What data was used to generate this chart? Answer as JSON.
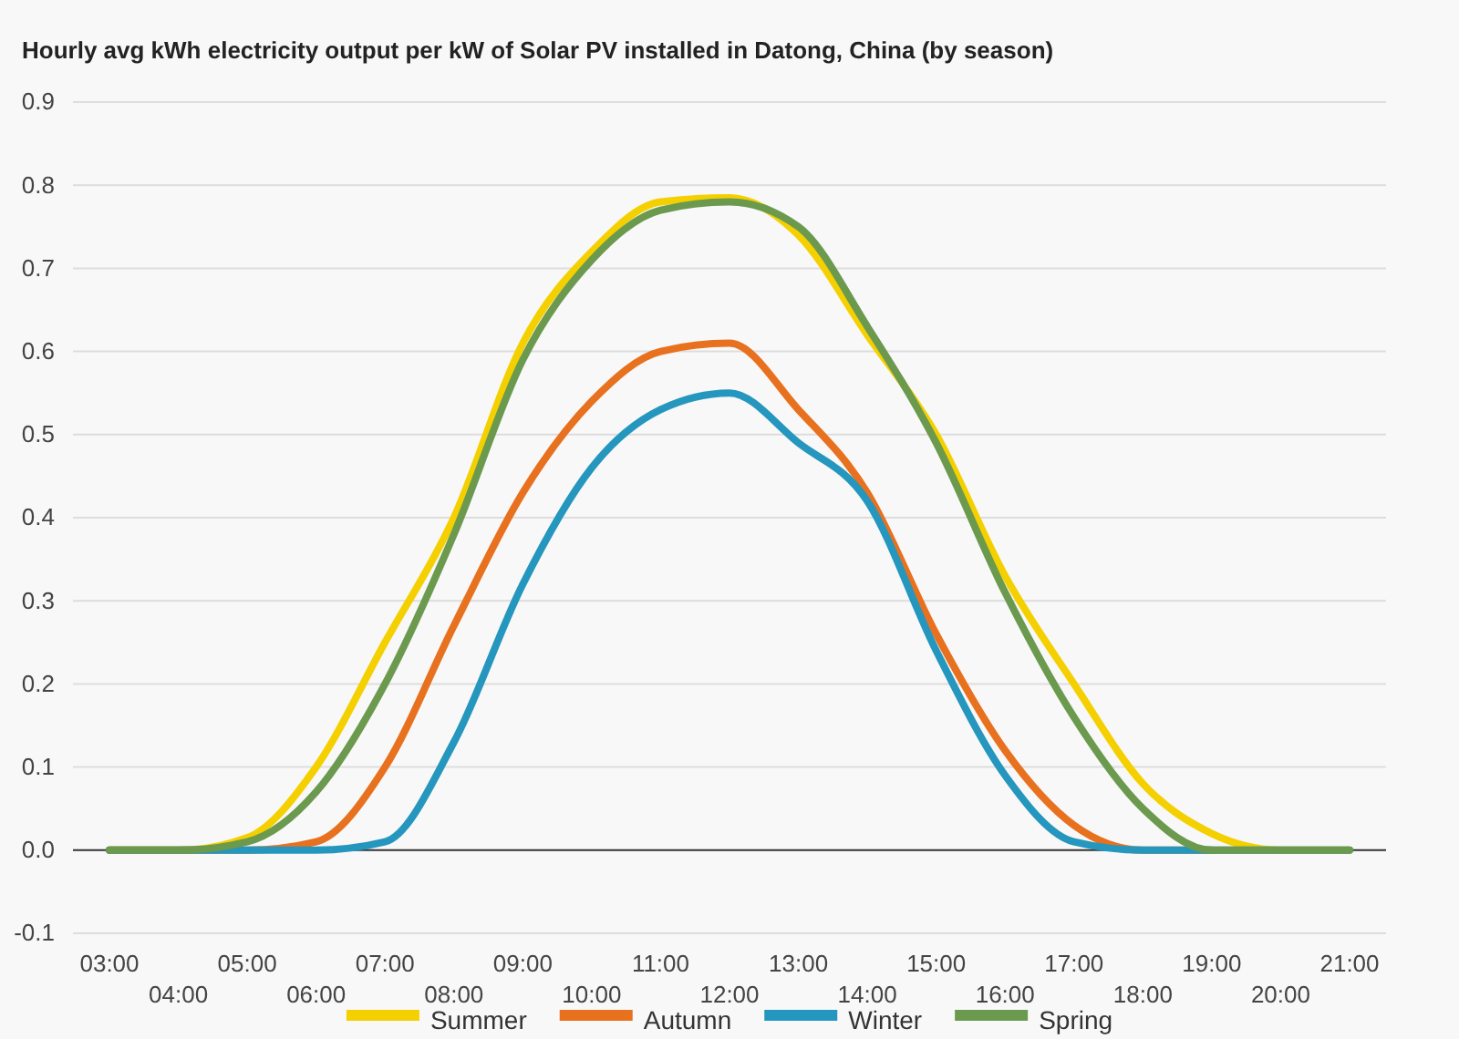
{
  "chart_data": {
    "type": "line",
    "title": "Hourly avg kWh electricity output per kW of Solar PV installed in Datong, China (by season)",
    "categories": [
      "03:00",
      "04:00",
      "05:00",
      "06:00",
      "07:00",
      "08:00",
      "09:00",
      "10:00",
      "11:00",
      "12:00",
      "13:00",
      "14:00",
      "15:00",
      "16:00",
      "17:00",
      "18:00",
      "19:00",
      "20:00",
      "21:00"
    ],
    "series": [
      {
        "name": "Summer",
        "color": "#f5d000",
        "values": [
          0,
          0,
          0.015,
          0.1,
          0.25,
          0.4,
          0.61,
          0.72,
          0.78,
          0.785,
          0.74,
          0.62,
          0.5,
          0.33,
          0.2,
          0.08,
          0.02,
          0,
          0
        ]
      },
      {
        "name": "Autumn",
        "color": "#e8711f",
        "values": [
          0,
          0,
          0,
          0.01,
          0.1,
          0.27,
          0.43,
          0.54,
          0.6,
          0.61,
          0.53,
          0.43,
          0.26,
          0.12,
          0.03,
          0,
          0,
          null,
          null
        ]
      },
      {
        "name": "Winter",
        "color": "#2596be",
        "values": [
          0,
          0,
          0,
          0,
          0.01,
          0.13,
          0.32,
          0.46,
          0.53,
          0.55,
          0.49,
          0.42,
          0.24,
          0.09,
          0.01,
          0,
          0,
          0,
          0
        ]
      },
      {
        "name": "Spring",
        "color": "#6b9a4f",
        "values": [
          0,
          0,
          0.01,
          0.07,
          0.2,
          0.38,
          0.59,
          0.71,
          0.77,
          0.78,
          0.75,
          0.63,
          0.49,
          0.31,
          0.16,
          0.05,
          0,
          0,
          0
        ]
      }
    ],
    "ylim": [
      -0.1,
      0.9
    ],
    "yticks": [
      {
        "value": -0.1,
        "label": "-0.1"
      },
      {
        "value": 0,
        "label": "0.0"
      },
      0.1,
      0.2,
      0.3,
      0.4,
      0.5,
      0.6,
      0.7,
      0.8,
      0.9
    ],
    "grid": "y",
    "legend": "bottom",
    "line_style": "solid",
    "marker": "none"
  }
}
